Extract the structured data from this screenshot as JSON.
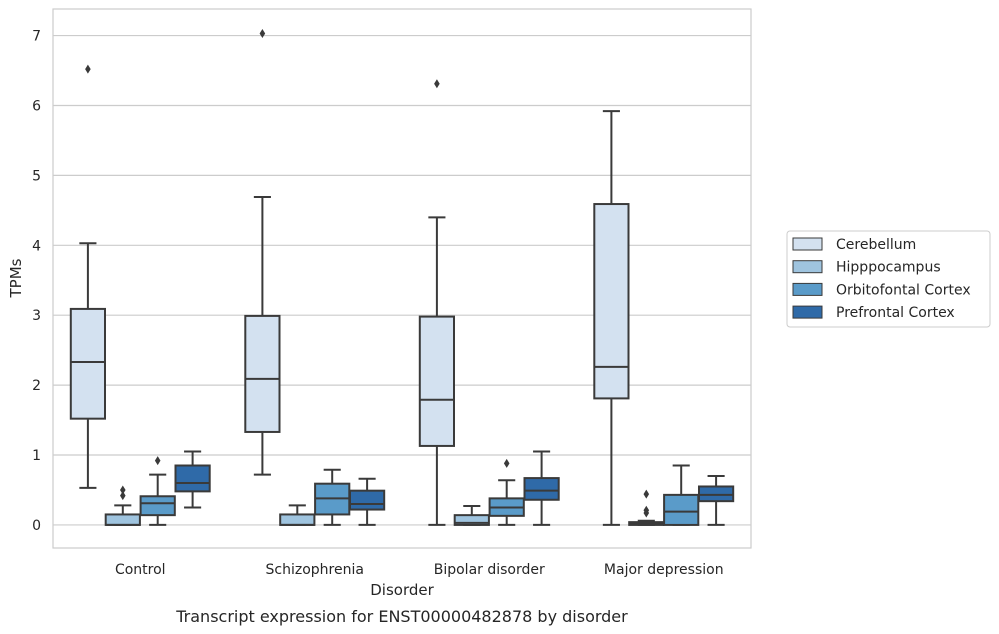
{
  "chart_data": {
    "type": "box",
    "caption": "Transcript expression for ENST00000482878 by disorder",
    "xlabel": "Disorder",
    "ylabel": "TPMs",
    "ylim": [
      -0.33,
      7.38
    ],
    "yticks": [
      0,
      1,
      2,
      3,
      4,
      5,
      6,
      7
    ],
    "grid": "horizontal",
    "legend_position": "right",
    "categories": [
      "Control",
      "Schizophrenia",
      "Bipolar disorder",
      "Major depression"
    ],
    "series": [
      {
        "name": "Cerebellum",
        "color": "#d3e1f0",
        "boxes": [
          {
            "whislo": 0.53,
            "q1": 1.52,
            "med": 2.33,
            "q3": 3.09,
            "whishi": 4.03,
            "fliers": [
              6.52
            ]
          },
          {
            "whislo": 0.72,
            "q1": 1.33,
            "med": 2.09,
            "q3": 2.99,
            "whishi": 4.69,
            "fliers": [
              7.03
            ]
          },
          {
            "whislo": 0.0,
            "q1": 1.13,
            "med": 1.79,
            "q3": 2.98,
            "whishi": 4.4,
            "fliers": [
              6.31
            ]
          },
          {
            "whislo": 0.0,
            "q1": 1.81,
            "med": 2.26,
            "q3": 4.59,
            "whishi": 5.92,
            "fliers": []
          }
        ]
      },
      {
        "name": "Hipppocampus",
        "color": "#9fc4df",
        "boxes": [
          {
            "whislo": 0.0,
            "q1": 0.0,
            "med": 0.0,
            "q3": 0.15,
            "whishi": 0.28,
            "fliers": [
              0.42,
              0.5
            ]
          },
          {
            "whislo": 0.0,
            "q1": 0.0,
            "med": 0.0,
            "q3": 0.15,
            "whishi": 0.28,
            "fliers": []
          },
          {
            "whislo": 0.0,
            "q1": 0.0,
            "med": 0.03,
            "q3": 0.14,
            "whishi": 0.27,
            "fliers": []
          },
          {
            "whislo": 0.0,
            "q1": 0.0,
            "med": 0.02,
            "q3": 0.04,
            "whishi": 0.06,
            "fliers": [
              0.17,
              0.21,
              0.44
            ]
          }
        ]
      },
      {
        "name": "Orbitofontal Cortex",
        "color": "#5a9bc9",
        "boxes": [
          {
            "whislo": 0.0,
            "q1": 0.14,
            "med": 0.31,
            "q3": 0.41,
            "whishi": 0.72,
            "fliers": [
              0.92
            ]
          },
          {
            "whislo": 0.0,
            "q1": 0.15,
            "med": 0.38,
            "q3": 0.59,
            "whishi": 0.79,
            "fliers": []
          },
          {
            "whislo": 0.0,
            "q1": 0.13,
            "med": 0.25,
            "q3": 0.38,
            "whishi": 0.64,
            "fliers": [
              0.88
            ]
          },
          {
            "whislo": 0.0,
            "q1": 0.0,
            "med": 0.19,
            "q3": 0.43,
            "whishi": 0.85,
            "fliers": []
          }
        ]
      },
      {
        "name": "Prefrontal Cortex",
        "color": "#2f6aa8",
        "boxes": [
          {
            "whislo": 0.25,
            "q1": 0.48,
            "med": 0.6,
            "q3": 0.85,
            "whishi": 1.05,
            "fliers": []
          },
          {
            "whislo": 0.0,
            "q1": 0.22,
            "med": 0.3,
            "q3": 0.49,
            "whishi": 0.66,
            "fliers": []
          },
          {
            "whislo": 0.0,
            "q1": 0.36,
            "med": 0.49,
            "q3": 0.67,
            "whishi": 1.05,
            "fliers": []
          },
          {
            "whislo": 0.0,
            "q1": 0.34,
            "med": 0.43,
            "q3": 0.55,
            "whishi": 0.7,
            "fliers": []
          }
        ]
      }
    ]
  }
}
